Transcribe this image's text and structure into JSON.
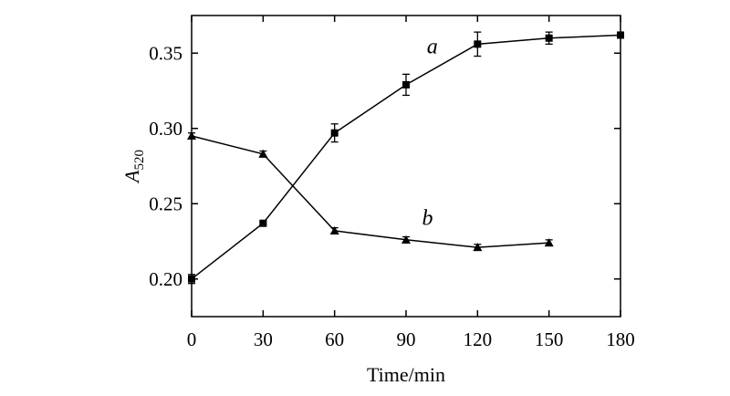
{
  "chart_data": {
    "type": "line",
    "xlabel": "Time/min",
    "ylabel": {
      "main": "A",
      "sub": "520"
    },
    "xlim": [
      0,
      180
    ],
    "ylim": [
      0.175,
      0.375
    ],
    "xticks": [
      0,
      30,
      60,
      90,
      120,
      150,
      180
    ],
    "xtick_labels": [
      "0",
      "30",
      "60",
      "90",
      "120",
      "150",
      "180"
    ],
    "yticks": [
      0.2,
      0.25,
      0.3,
      0.35
    ],
    "ytick_labels": [
      "0.20",
      "0.25",
      "0.30",
      "0.35"
    ],
    "grid": false,
    "legend": "none",
    "series": [
      {
        "name": "a",
        "marker": "square",
        "label_at": {
          "x": 101,
          "y": 0.35
        },
        "points": [
          {
            "x": 0,
            "y": 0.2,
            "err": 0.003
          },
          {
            "x": 30,
            "y": 0.237,
            "err": 0.001
          },
          {
            "x": 60,
            "y": 0.297,
            "err": 0.006
          },
          {
            "x": 90,
            "y": 0.329,
            "err": 0.007
          },
          {
            "x": 120,
            "y": 0.356,
            "err": 0.008
          },
          {
            "x": 150,
            "y": 0.36,
            "err": 0.004
          },
          {
            "x": 180,
            "y": 0.362,
            "err": 0.002
          }
        ]
      },
      {
        "name": "b",
        "marker": "triangle",
        "label_at": {
          "x": 99,
          "y": 0.236
        },
        "points": [
          {
            "x": 0,
            "y": 0.295,
            "err": 0.002
          },
          {
            "x": 30,
            "y": 0.283,
            "err": 0.002
          },
          {
            "x": 60,
            "y": 0.232,
            "err": 0.002
          },
          {
            "x": 90,
            "y": 0.226,
            "err": 0.002
          },
          {
            "x": 120,
            "y": 0.221,
            "err": 0.002
          },
          {
            "x": 150,
            "y": 0.224,
            "err": 0.002
          }
        ]
      }
    ]
  }
}
